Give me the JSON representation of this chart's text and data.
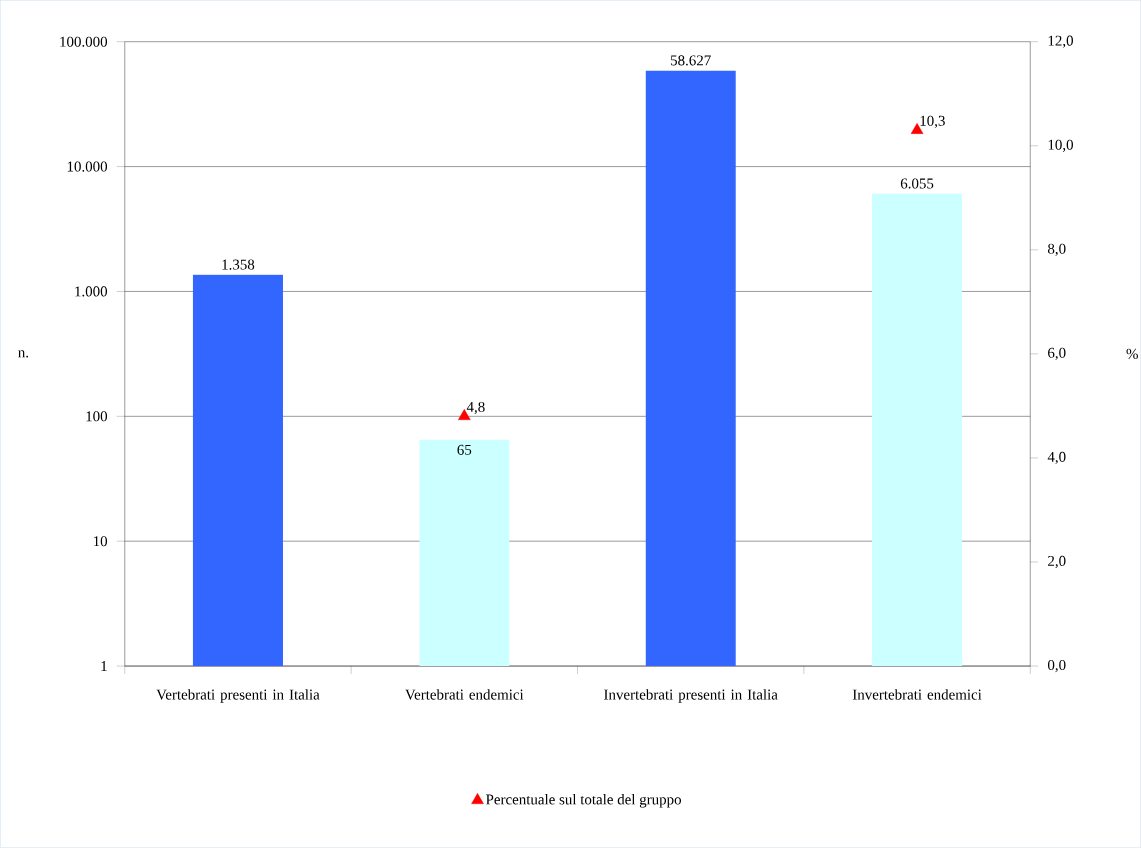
{
  "chart_data": {
    "type": "bar",
    "categories": [
      "Vertebrati presenti in Italia",
      "Vertebrati endemici",
      "Invertebrati presenti in Italia",
      "Invertebrati endemici"
    ],
    "ylabel": "n.",
    "y2label": "%",
    "log": "y",
    "grid": "y",
    "legend": "bottom",
    "ylim": [
      1,
      100000
    ],
    "yticks": [
      1,
      10,
      100,
      {
        "value": 1000,
        "label": "1.000"
      },
      {
        "value": 10000,
        "label": "10.000"
      },
      {
        "value": 100000,
        "label": "100.000"
      }
    ],
    "y2lim": [
      0,
      12
    ],
    "y2ticks": [
      {
        "value": 0,
        "label": "0,0"
      },
      {
        "value": 2,
        "label": "2,0"
      },
      {
        "value": 4,
        "label": "4,0"
      },
      {
        "value": 6,
        "label": "6,0"
      },
      {
        "value": 8,
        "label": "8,0"
      },
      {
        "value": 10,
        "label": "10,0"
      },
      {
        "value": 12,
        "label": "12,0"
      }
    ],
    "series": [
      {
        "colors": [
          "#3366ff",
          "#ccffff",
          "#3366ff",
          "#ccffff"
        ],
        "values": [
          1358,
          65,
          58627,
          6055
        ],
        "value_labels": [
          "1.358",
          "65",
          "58.627",
          "6.055"
        ]
      },
      {
        "type": "scatter",
        "axis": "y2",
        "name": "Percentuale sul totale del gruppo",
        "color": "#ff0000",
        "marker": "triangle",
        "values": [
          null,
          4.8,
          null,
          10.3
        ],
        "value_labels": [
          null,
          "4,8",
          null,
          "10,3"
        ]
      }
    ]
  }
}
